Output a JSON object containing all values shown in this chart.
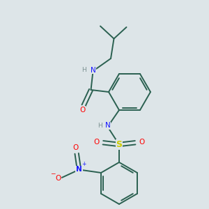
{
  "bg_color": "#dde5e8",
  "bond_color": "#2a6050",
  "atom_colors": {
    "N": "#1515ff",
    "O": "#ff0000",
    "S": "#cccc00",
    "H": "#7a9090",
    "C": "#2a6050"
  }
}
